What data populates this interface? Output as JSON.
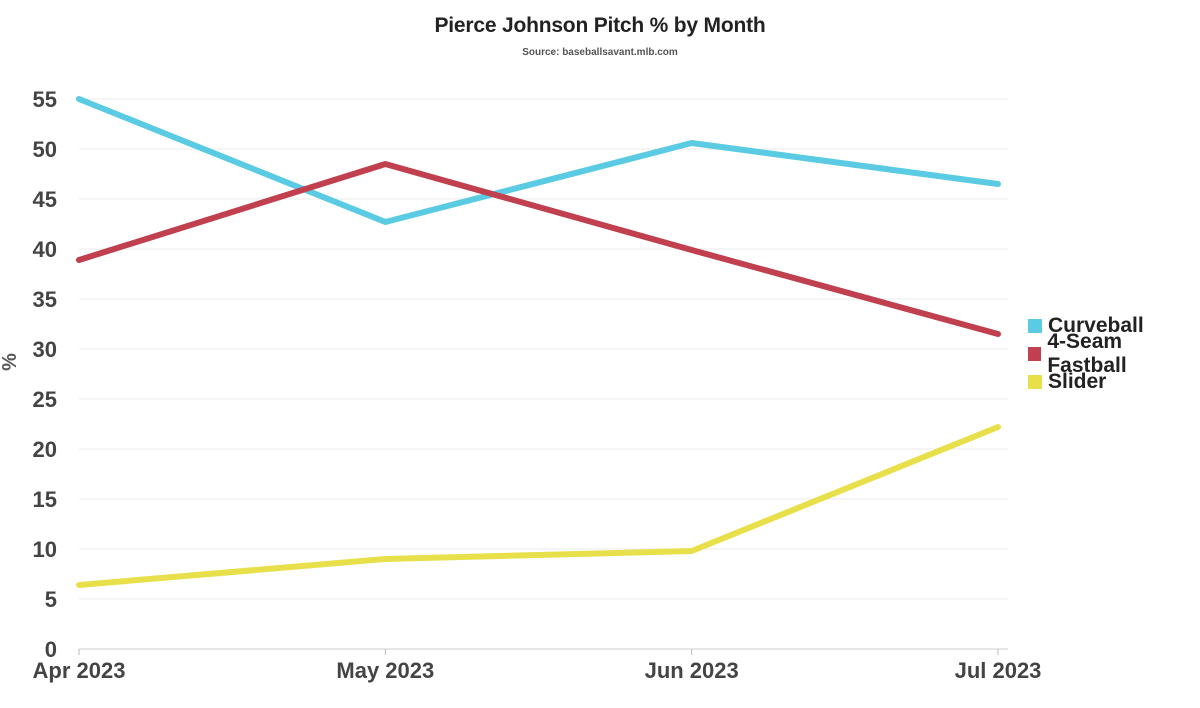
{
  "chart_data": {
    "type": "line",
    "title": "Pierce Johnson Pitch % by Month",
    "subtitle": "Source: baseballsavant.mlb.com",
    "xlabel": "",
    "ylabel": "%",
    "categories": [
      "Apr 2023",
      "May 2023",
      "Jun 2023",
      "Jul 2023"
    ],
    "ylim": [
      0,
      55
    ],
    "yticks": [
      0,
      5,
      10,
      15,
      20,
      25,
      30,
      35,
      40,
      45,
      50,
      55
    ],
    "grid": true,
    "legend_position": "right",
    "series": [
      {
        "name": "Curveball",
        "color": "#5bcbe3",
        "values": [
          55.0,
          42.7,
          50.6,
          46.5
        ]
      },
      {
        "name": "4-Seam Fastball",
        "color": "#c0404f",
        "values": [
          38.9,
          48.5,
          39.9,
          31.5
        ]
      },
      {
        "name": "Slider",
        "color": "#e8e04a",
        "values": [
          6.4,
          9.0,
          9.8,
          22.2
        ]
      }
    ]
  }
}
